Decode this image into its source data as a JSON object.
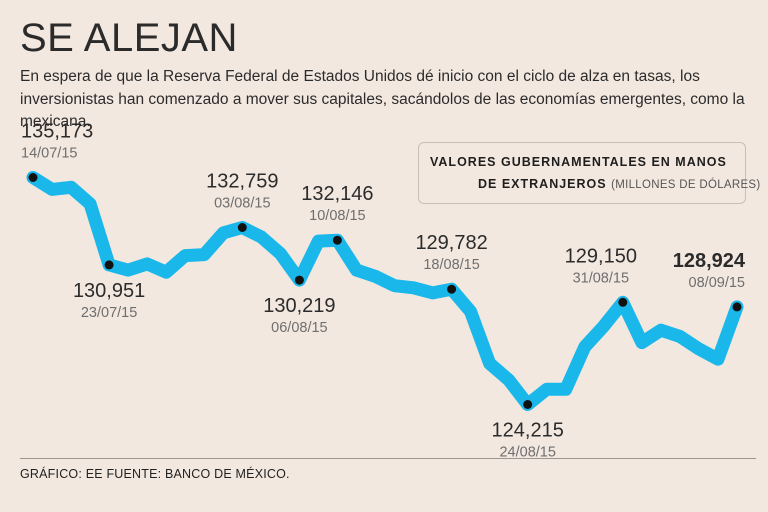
{
  "header": {
    "title": "SE ALEJAN",
    "subtitle": "En espera de que la Reserva Federal de Estados Unidos dé inicio con el ciclo de alza en tasas, los inversionistas han comenzado a mover sus capitales, sacándolos de las economías emergentes, como la mexicana."
  },
  "legend": {
    "line1": "VALORES GUBERNAMENTALES EN MANOS",
    "line2": "DE EXTRANJEROS",
    "units": "(MILLONES DE DÓLARES)"
  },
  "footer": {
    "credit": "GRÁFICO: EE  FUENTE: BANCO DE MÉXICO."
  },
  "colors": {
    "background": "#f3e8e0",
    "line": "#1ab7ea",
    "marker": "#111111",
    "text": "#2b2b2b",
    "date_text": "#6e6e6e"
  },
  "chart_data": {
    "type": "line",
    "title": "Valores gubernamentales en manos de extranjeros",
    "ylabel": "Millones de dólares",
    "ylim": [
      122500,
      136500
    ],
    "grid": false,
    "series": [
      {
        "name": "Valores gubernamentales en manos de extranjeros",
        "values": [
          135173,
          134600,
          134700,
          133900,
          130951,
          130700,
          131000,
          130600,
          131400,
          131450,
          132500,
          132759,
          132300,
          131500,
          130219,
          132100,
          132146,
          130700,
          130400,
          129950,
          129850,
          129600,
          129782,
          128700,
          126200,
          125400,
          124215,
          124950,
          124950,
          127000,
          128000,
          129150,
          127200,
          127800,
          127500,
          126900,
          126400,
          128924
        ]
      }
    ],
    "annotations": [
      {
        "index": 0,
        "value": "135,173",
        "date": "14/07/15",
        "placement": "above"
      },
      {
        "index": 4,
        "value": "130,951",
        "date": "23/07/15",
        "placement": "below"
      },
      {
        "index": 11,
        "value": "132,759",
        "date": "03/08/15",
        "placement": "above"
      },
      {
        "index": 14,
        "value": "130,219",
        "date": "06/08/15",
        "placement": "below"
      },
      {
        "index": 16,
        "value": "132,146",
        "date": "10/08/15",
        "placement": "above"
      },
      {
        "index": 22,
        "value": "129,782",
        "date": "18/08/15",
        "placement": "above"
      },
      {
        "index": 26,
        "value": "124,215",
        "date": "24/08/15",
        "placement": "below"
      },
      {
        "index": 31,
        "value": "129,150",
        "date": "31/08/15",
        "placement": "above"
      },
      {
        "index": 37,
        "value": "128,924",
        "date": "08/09/15",
        "placement": "above",
        "bold": true
      }
    ]
  }
}
